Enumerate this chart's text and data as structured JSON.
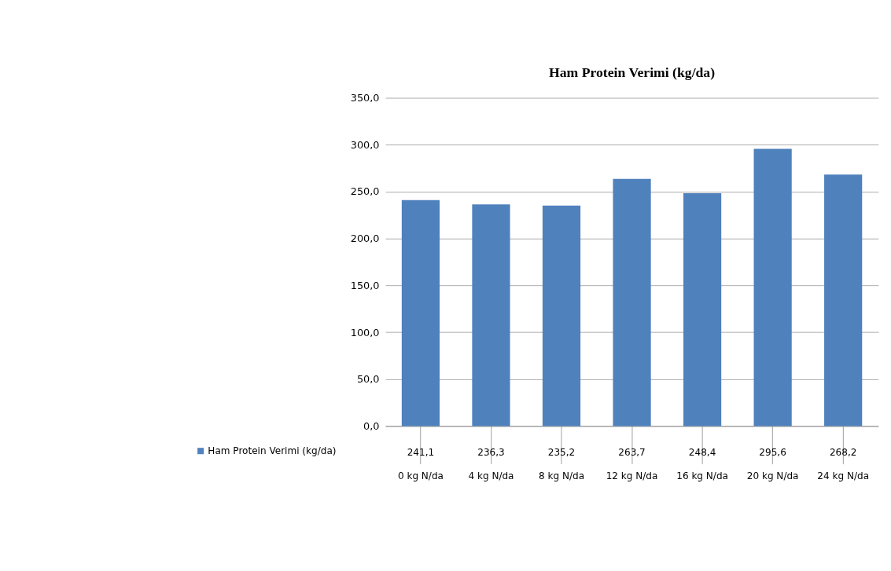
{
  "chart_data": {
    "type": "bar",
    "title": "Ham Protein Verimi (kg/da)",
    "categories": [
      "0 kg N/da",
      "4 kg N/da",
      "8 kg N/da",
      "12 kg N/da",
      "16 kg N/da",
      "20 kg N/da",
      "24 kg N/da"
    ],
    "series": [
      {
        "name": "Ham Protein Verimi (kg/da)",
        "color": "#4f81bd",
        "values": [
          241.1,
          236.3,
          235.2,
          263.7,
          248.4,
          295.6,
          268.2
        ],
        "value_labels": [
          "241,1",
          "236,3",
          "235,2",
          "263,7",
          "248,4",
          "295,6",
          "268,2"
        ]
      }
    ],
    "ylim": [
      0,
      350
    ],
    "yticks": [
      {
        "value": 0,
        "label": "0,0"
      },
      {
        "value": 50,
        "label": "50,0"
      },
      {
        "value": 100,
        "label": "100,0"
      },
      {
        "value": 150,
        "label": "150,0"
      },
      {
        "value": 200,
        "label": "200,0"
      },
      {
        "value": 250,
        "label": "250,0"
      },
      {
        "value": 300,
        "label": "300,0"
      },
      {
        "value": 350,
        "label": "350,0"
      }
    ],
    "grid": "y",
    "legend": "bottom"
  }
}
